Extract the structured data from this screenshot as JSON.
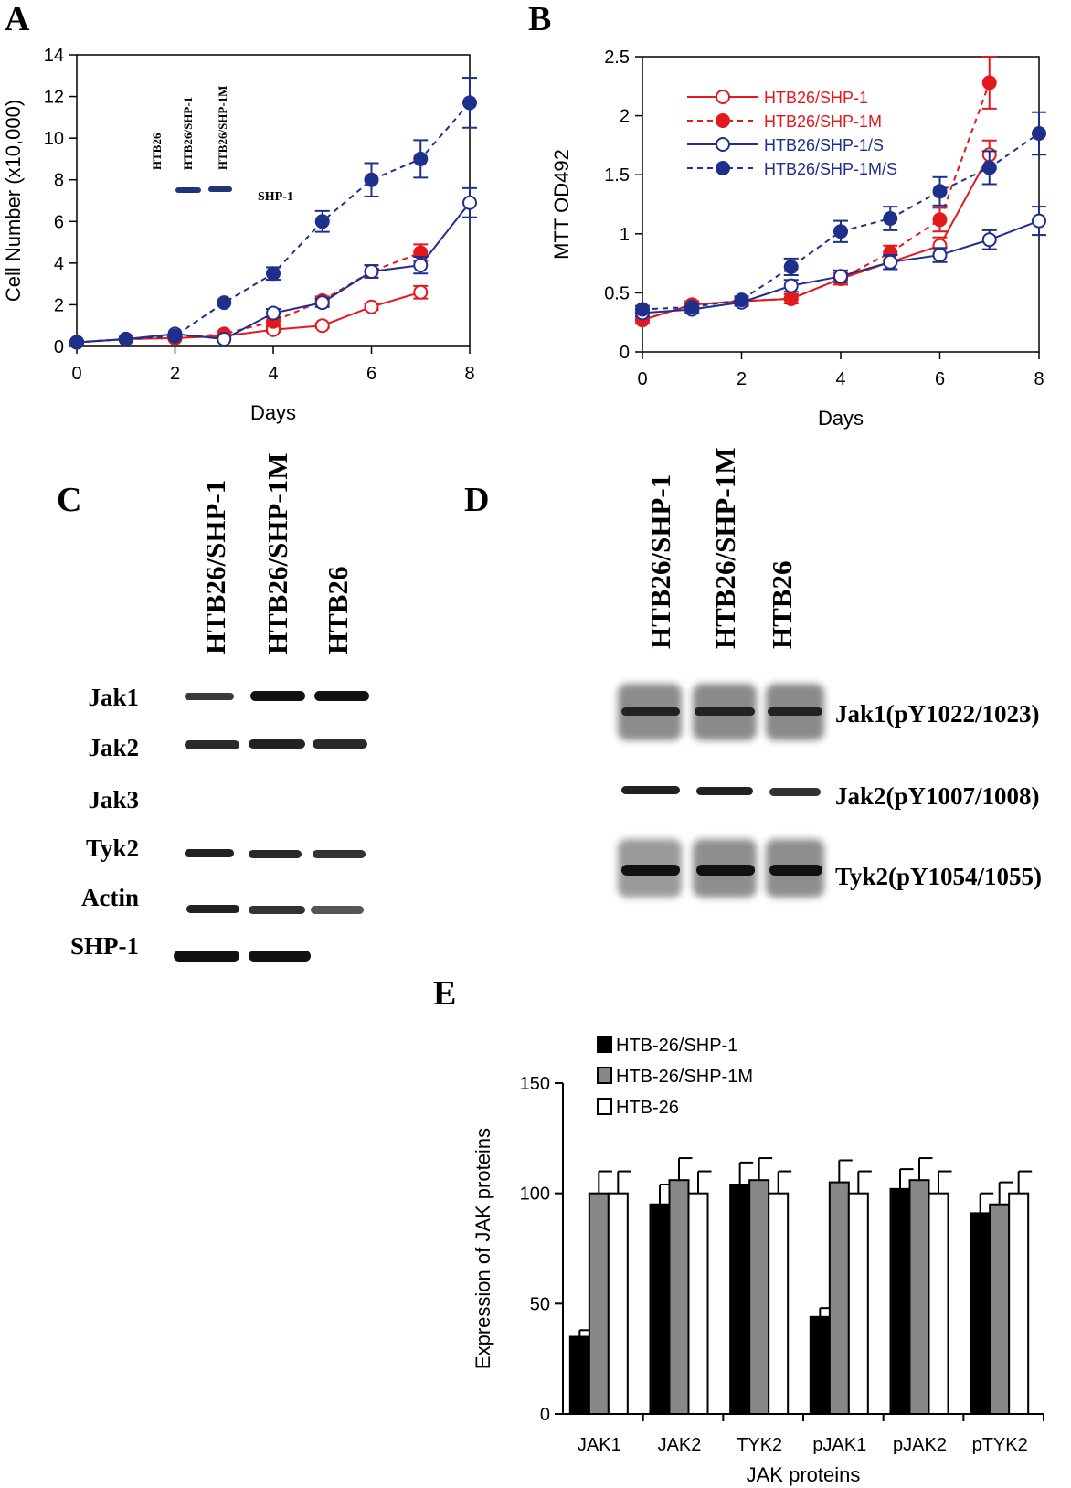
{
  "panels": {
    "A": "A",
    "B": "B",
    "C": "C",
    "D": "D",
    "E": "E"
  },
  "colors": {
    "red": "#e3191e",
    "blue": "#1f2f8c",
    "bar_black": "#000000",
    "bar_gray": "#888888",
    "bar_white": "#ffffff"
  },
  "chart_data": [
    {
      "id": "A",
      "type": "line",
      "xlabel": "Days",
      "ylabel": "Cell Number (x10,000)",
      "xlim": [
        0,
        8
      ],
      "ylim": [
        0,
        14
      ],
      "xticks": [
        0,
        2,
        4,
        6,
        8
      ],
      "yticks": [
        0,
        2,
        4,
        6,
        8,
        10,
        12,
        14
      ],
      "series": [
        {
          "key": "shp1",
          "color": "#e3191e",
          "marker": "open",
          "dashed": false,
          "x": [
            0,
            1,
            2,
            3,
            4,
            5,
            6,
            7
          ],
          "y": [
            0.2,
            0.35,
            0.4,
            0.5,
            0.8,
            1.0,
            1.9,
            2.6
          ],
          "err": [
            0,
            0,
            0,
            0,
            0.1,
            0.1,
            0.15,
            0.3
          ]
        },
        {
          "key": "shp1m",
          "color": "#e3191e",
          "marker": "filled",
          "dashed": true,
          "x": [
            0,
            1,
            2,
            3,
            4,
            5,
            6,
            7
          ],
          "y": [
            0.2,
            0.35,
            0.4,
            0.6,
            1.2,
            2.2,
            3.6,
            4.5
          ],
          "err": [
            0,
            0,
            0,
            0,
            0.2,
            0.2,
            0.3,
            0.4
          ]
        },
        {
          "key": "shp1s",
          "color": "#1f2f8c",
          "marker": "open",
          "dashed": false,
          "x": [
            0,
            1,
            2,
            3,
            4,
            5,
            6,
            7,
            8
          ],
          "y": [
            0.2,
            0.35,
            0.6,
            0.35,
            1.6,
            2.1,
            3.6,
            3.9,
            6.9
          ],
          "err": [
            0,
            0,
            0,
            0,
            0.2,
            0.2,
            0.3,
            0.4,
            0.7
          ]
        },
        {
          "key": "shp1ms",
          "color": "#1f2f8c",
          "marker": "filled",
          "dashed": true,
          "x": [
            0,
            1,
            2,
            3,
            4,
            5,
            6,
            7,
            8
          ],
          "y": [
            0.2,
            0.35,
            0.5,
            2.1,
            3.5,
            6.0,
            8.0,
            9.0,
            11.7
          ],
          "err": [
            0,
            0,
            0,
            0,
            0.3,
            0.5,
            0.8,
            0.9,
            1.2
          ]
        }
      ],
      "inset": {
        "lanes": [
          "HTB26",
          "HTB26/SHP-1",
          "HTB26/SHP-1M"
        ],
        "band_label": "SHP-1"
      }
    },
    {
      "id": "B",
      "type": "line",
      "xlabel": "Days",
      "ylabel": "MTT OD492",
      "xlim": [
        0,
        8
      ],
      "ylim": [
        0,
        2.5
      ],
      "xticks": [
        0,
        2,
        4,
        6,
        8
      ],
      "yticks": [
        0,
        0.5,
        1,
        1.5,
        2,
        2.5
      ],
      "legend": [
        "HTB26/SHP-1",
        "HTB26/SHP-1M",
        "HTB26/SHP-1/S",
        "HTB26/SHP-1M/S"
      ],
      "series": [
        {
          "name": "HTB26/SHP-1",
          "color": "#e3191e",
          "marker": "open",
          "dashed": false,
          "x": [
            0,
            1,
            2,
            3,
            4,
            5,
            6,
            7
          ],
          "y": [
            0.27,
            0.4,
            0.43,
            0.45,
            0.62,
            0.76,
            0.9,
            1.67
          ],
          "err": [
            0.03,
            0.03,
            0.03,
            0.04,
            0.05,
            0.06,
            0.07,
            0.12
          ]
        },
        {
          "name": "HTB26/SHP-1M",
          "color": "#e3191e",
          "marker": "filled",
          "dashed": true,
          "x": [
            0,
            1,
            2,
            3,
            4,
            5,
            6,
            7
          ],
          "y": [
            0.27,
            0.4,
            0.43,
            0.45,
            0.62,
            0.84,
            1.12,
            2.28
          ],
          "err": [
            0.03,
            0.03,
            0.03,
            0.04,
            0.05,
            0.06,
            0.1,
            0.22
          ]
        },
        {
          "name": "HTB26/SHP-1/S",
          "color": "#1f2f8c",
          "marker": "open",
          "dashed": false,
          "x": [
            0,
            1,
            2,
            3,
            4,
            5,
            6,
            7,
            8
          ],
          "y": [
            0.33,
            0.36,
            0.42,
            0.56,
            0.64,
            0.76,
            0.82,
            0.95,
            1.11
          ],
          "err": [
            0.03,
            0.03,
            0.03,
            0.05,
            0.05,
            0.06,
            0.06,
            0.08,
            0.12
          ]
        },
        {
          "name": "HTB26/SHP-1M/S",
          "color": "#1f2f8c",
          "marker": "filled",
          "dashed": true,
          "x": [
            0,
            1,
            2,
            3,
            4,
            5,
            6,
            7,
            8
          ],
          "y": [
            0.36,
            0.38,
            0.44,
            0.72,
            1.02,
            1.13,
            1.36,
            1.56,
            1.85
          ],
          "err": [
            0.03,
            0.03,
            0.03,
            0.07,
            0.09,
            0.1,
            0.12,
            0.14,
            0.18
          ]
        }
      ]
    },
    {
      "id": "E",
      "type": "bar",
      "xlabel": "JAK proteins",
      "ylabel": "Expression of JAK proteins",
      "ylim": [
        0,
        150
      ],
      "yticks": [
        0,
        50,
        100,
        150
      ],
      "categories": [
        "JAK1",
        "JAK2",
        "TYK2",
        "pJAK1",
        "pJAK2",
        "pTYK2"
      ],
      "series": [
        {
          "name": "HTB-26/SHP-1",
          "fill": "#000000",
          "values": [
            35,
            95,
            104,
            44,
            102,
            91
          ],
          "err": [
            3,
            9,
            10,
            4,
            9,
            9
          ]
        },
        {
          "name": "HTB-26/SHP-1M",
          "fill": "#888888",
          "values": [
            100,
            106,
            106,
            105,
            106,
            95
          ],
          "err": [
            10,
            10,
            10,
            10,
            10,
            10
          ]
        },
        {
          "name": "HTB-26",
          "fill": "#ffffff",
          "values": [
            100,
            100,
            100,
            100,
            100,
            100
          ],
          "err": [
            10,
            10,
            10,
            10,
            10,
            10
          ]
        }
      ]
    }
  ],
  "blot_C": {
    "lanes": [
      "HTB26/SHP-1",
      "HTB26/SHP-1M",
      "HTB26"
    ],
    "rows": [
      "Jak1",
      "Jak2",
      "Jak3",
      "Tyk2",
      "Actin",
      "SHP-1"
    ]
  },
  "blot_D": {
    "lanes": [
      "HTB26/SHP-1",
      "HTB26/SHP-1M",
      "HTB26"
    ],
    "rows": [
      "Jak1(pY1022/1023)",
      "Jak2(pY1007/1008)",
      "Tyk2(pY1054/1055)"
    ]
  }
}
